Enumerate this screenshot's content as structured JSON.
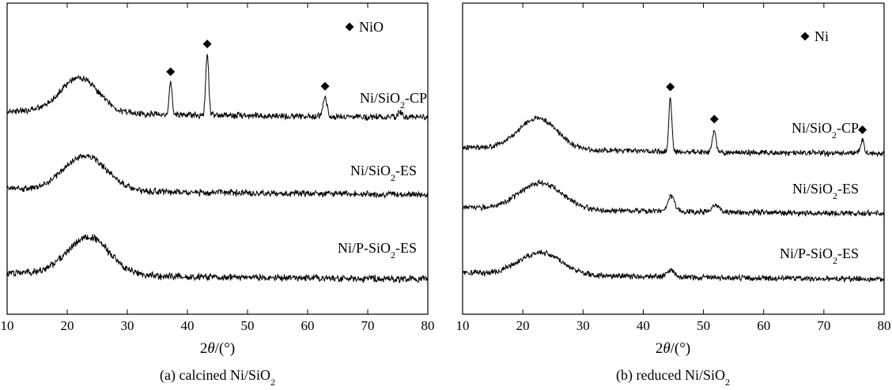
{
  "chart_data": [
    {
      "type": "line",
      "panel": "a",
      "caption": {
        "prefix": "(a) calcined  Ni/SiO",
        "sub": "2",
        "suffix": ""
      },
      "xlabel": {
        "pre": "2",
        "theta": "θ",
        "post": "/(°)"
      },
      "xlim": [
        10,
        80
      ],
      "xticks": [
        10,
        20,
        30,
        40,
        50,
        60,
        70,
        80
      ],
      "legend": {
        "marker": "diamond",
        "label": "NiO",
        "position": "top-right"
      },
      "series": [
        {
          "name": "Ni/SiO2-CP",
          "label": {
            "pre": "Ni/SiO",
            "sub": "2",
            "post": "-CP"
          },
          "baseline": 0.72,
          "noise": 0.04,
          "broad_peak": {
            "center": 22,
            "height": 0.55,
            "width": 4.5
          },
          "peaks": [
            {
              "x": 37.2,
              "height": 0.5,
              "width": 0.35
            },
            {
              "x": 43.3,
              "height": 0.95,
              "width": 0.35
            },
            {
              "x": 62.9,
              "height": 0.3,
              "width": 0.45
            },
            {
              "x": 75.4,
              "height": 0.08,
              "width": 0.5
            }
          ],
          "markers": [
            37.2,
            43.3,
            62.9
          ]
        },
        {
          "name": "Ni/SiO2-ES",
          "label": {
            "pre": "Ni/SiO",
            "sub": "2",
            "post": "-ES"
          },
          "baseline": 0.0,
          "noise": 0.04,
          "broad_peak": {
            "center": 23,
            "height": 0.55,
            "width": 5
          },
          "peaks": [],
          "markers": []
        },
        {
          "name": "Ni/P-SiO2-ES",
          "label": {
            "pre": "Ni/P-SiO",
            "sub": "2",
            "post": "-ES"
          },
          "baseline": -0.6,
          "noise": 0.045,
          "broad_peak": {
            "center": 23.5,
            "height": 0.6,
            "width": 5
          },
          "peaks": [],
          "markers": []
        }
      ]
    },
    {
      "type": "line",
      "panel": "b",
      "caption": {
        "prefix": "(b) reduced  Ni/SiO",
        "sub": "2",
        "suffix": ""
      },
      "xlabel": {
        "pre": "2",
        "theta": "θ",
        "post": "/(°)"
      },
      "xlim": [
        10,
        80
      ],
      "xticks": [
        10,
        20,
        30,
        40,
        50,
        60,
        70,
        80
      ],
      "legend": {
        "marker": "diamond",
        "label": "Ni",
        "position": "top-right"
      },
      "series": [
        {
          "name": "Ni/SiO2-CP",
          "label": {
            "pre": "Ni/SiO",
            "sub": "2",
            "post": "-CP"
          },
          "baseline": 0.6,
          "noise": 0.035,
          "broad_peak": {
            "center": 22.5,
            "height": 0.5,
            "width": 4.5
          },
          "peaks": [
            {
              "x": 44.5,
              "height": 0.85,
              "width": 0.35
            },
            {
              "x": 51.8,
              "height": 0.35,
              "width": 0.4
            },
            {
              "x": 76.4,
              "height": 0.2,
              "width": 0.4
            }
          ],
          "markers": [
            44.5,
            51.8,
            76.4
          ]
        },
        {
          "name": "Ni/SiO2-ES",
          "label": {
            "pre": "Ni/SiO",
            "sub": "2",
            "post": "-ES"
          },
          "baseline": 0.0,
          "noise": 0.035,
          "broad_peak": {
            "center": 23,
            "height": 0.42,
            "width": 5
          },
          "peaks": [
            {
              "x": 44.6,
              "height": 0.25,
              "width": 0.8
            },
            {
              "x": 52.0,
              "height": 0.12,
              "width": 0.8
            }
          ],
          "markers": []
        },
        {
          "name": "Ni/P-SiO2-ES",
          "label": {
            "pre": "Ni/P-SiO",
            "sub": "2",
            "post": "-ES"
          },
          "baseline": -0.55,
          "noise": 0.035,
          "broad_peak": {
            "center": 23,
            "height": 0.35,
            "width": 5
          },
          "peaks": [
            {
              "x": 44.5,
              "height": 0.1,
              "width": 0.9
            }
          ],
          "markers": []
        }
      ]
    }
  ]
}
